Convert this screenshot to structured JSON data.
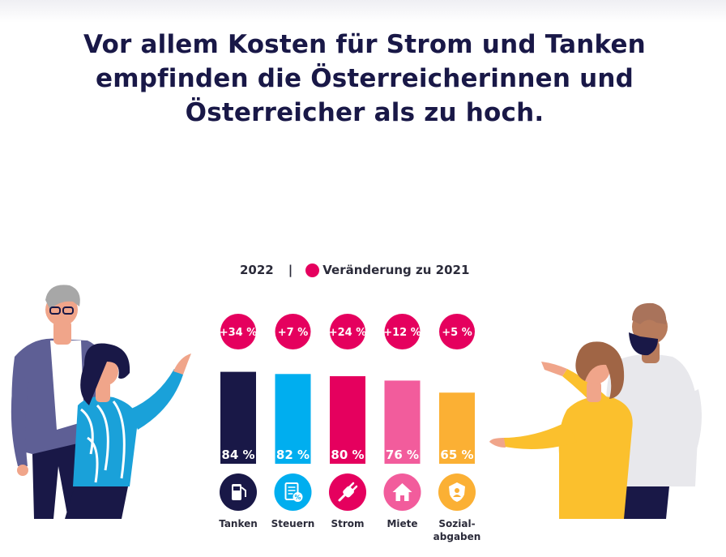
{
  "title": {
    "line1": "Vor allem Kosten für Strom und Tanken",
    "line2": "empfinden die Österreicherinnen und",
    "line3": "Österreicher als zu hoch."
  },
  "legend": {
    "year": "2022",
    "separator": "|",
    "change_label": "Veränderung zu 2021",
    "change_color": "#e5005e"
  },
  "chart_data": {
    "type": "bar",
    "categories": [
      "Tanken",
      "Steuern",
      "Strom",
      "Miete",
      "Sozial-\nabgaben"
    ],
    "values": [
      84,
      82,
      80,
      76,
      65
    ],
    "value_labels": [
      "84 %",
      "82 %",
      "80 %",
      "76 %",
      "65 %"
    ],
    "change_labels": [
      "+34 %",
      "+7 %",
      "+24 %",
      "+12 %",
      "+5 %"
    ],
    "bar_colors": [
      "#191847",
      "#00aeef",
      "#e5005e",
      "#f25c9c",
      "#fbb034"
    ],
    "icons": [
      "fuel-pump-icon",
      "tax-document-icon",
      "power-plug-icon",
      "house-icon",
      "social-shield-icon"
    ],
    "ylim": [
      0,
      100
    ],
    "grid": false,
    "legend_position": "top"
  }
}
